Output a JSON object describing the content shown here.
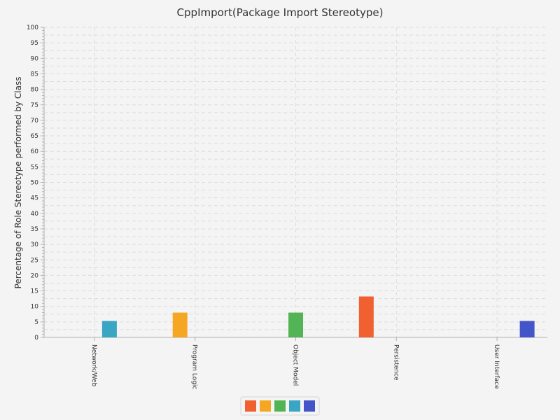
{
  "chart_data": {
    "type": "bar",
    "title": "CppImport(Package Import Stereotype)",
    "xlabel": "",
    "ylabel": "Percentage of Role Stereotype performed by Class",
    "ylim": [
      0,
      100
    ],
    "yticks": [
      0,
      5,
      10,
      15,
      20,
      25,
      30,
      35,
      40,
      45,
      50,
      55,
      60,
      65,
      70,
      75,
      80,
      85,
      90,
      95,
      100
    ],
    "categories": [
      "Network/Web",
      "Program Logic",
      "Object Model",
      "Persistence",
      "User Interface"
    ],
    "series": [
      {
        "color": "#f06030",
        "values": [
          0,
          0,
          0,
          13.2,
          0
        ]
      },
      {
        "color": "#f5a623",
        "values": [
          0,
          8,
          0,
          0,
          0
        ]
      },
      {
        "color": "#53b455",
        "values": [
          0,
          0,
          8,
          0,
          0
        ]
      },
      {
        "color": "#3aa6c4",
        "values": [
          5.3,
          0,
          0,
          0,
          0
        ]
      },
      {
        "color": "#4355c8",
        "values": [
          0,
          0,
          0,
          0,
          5.3
        ]
      }
    ],
    "grid": true,
    "legend": "bottom-center"
  }
}
